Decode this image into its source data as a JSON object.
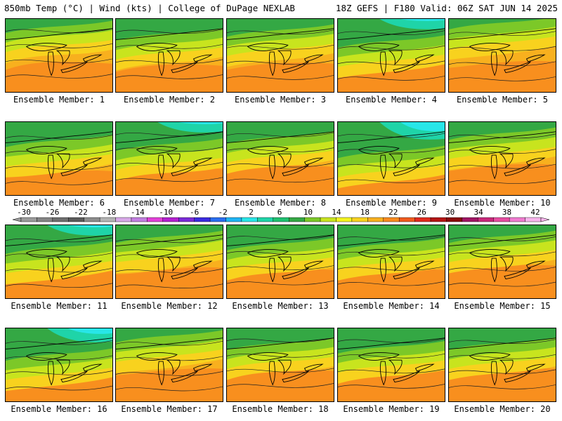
{
  "header": {
    "left_title": "850mb Temp (°C) | Wind (kts) | College of DuPage NEXLAB",
    "right_title": "18Z GEFS | F180 Valid: 06Z SAT JUN 14 2025"
  },
  "panels": [
    {
      "label": "Ensemble Member: 1",
      "warm": 0.55,
      "cold": 0.25
    },
    {
      "label": "Ensemble Member: 2",
      "warm": 0.5,
      "cold": 0.35
    },
    {
      "label": "Ensemble Member: 3",
      "warm": 0.55,
      "cold": 0.3
    },
    {
      "label": "Ensemble Member: 4",
      "warm": 0.55,
      "cold": 0.45
    },
    {
      "label": "Ensemble Member: 5",
      "warm": 0.6,
      "cold": 0.2
    },
    {
      "label": "Ensemble Member: 6",
      "warm": 0.45,
      "cold": 0.4
    },
    {
      "label": "Ensemble Member: 7",
      "warm": 0.5,
      "cold": 0.45
    },
    {
      "label": "Ensemble Member: 8",
      "warm": 0.55,
      "cold": 0.35
    },
    {
      "label": "Ensemble Member: 9",
      "warm": 0.4,
      "cold": 0.55
    },
    {
      "label": "Ensemble Member: 10",
      "warm": 0.6,
      "cold": 0.3
    },
    {
      "label": "Ensemble Member: 11",
      "warm": 0.65,
      "cold": 0.45
    },
    {
      "label": "Ensemble Member: 12",
      "warm": 0.6,
      "cold": 0.3
    },
    {
      "label": "Ensemble Member: 13",
      "warm": 0.55,
      "cold": 0.4
    },
    {
      "label": "Ensemble Member: 14",
      "warm": 0.55,
      "cold": 0.4
    },
    {
      "label": "Ensemble Member: 15",
      "warm": 0.65,
      "cold": 0.3
    },
    {
      "label": "Ensemble Member: 16",
      "warm": 0.55,
      "cold": 0.5
    },
    {
      "label": "Ensemble Member: 17",
      "warm": 0.65,
      "cold": 0.25
    },
    {
      "label": "Ensemble Member: 18",
      "warm": 0.6,
      "cold": 0.35
    },
    {
      "label": "Ensemble Member: 19",
      "warm": 0.6,
      "cold": 0.4
    },
    {
      "label": "Ensemble Member: 20",
      "warm": 0.65,
      "cold": 0.35
    }
  ],
  "colorbar": {
    "ticks": [
      "-30",
      "-26",
      "-22",
      "-18",
      "-14",
      "-10",
      "-6",
      "-2",
      "2",
      "6",
      "10",
      "14",
      "18",
      "22",
      "26",
      "30",
      "34",
      "38",
      "42"
    ],
    "colors": [
      "#9a9a9a",
      "#848484",
      "#6e6e6e",
      "#5a5a5a",
      "#8c8c8c",
      "#b4b4b4",
      "#d7a8e8",
      "#c27ee0",
      "#e23fd8",
      "#b41fd0",
      "#7a2ad8",
      "#3a2ae0",
      "#2a6ef0",
      "#1fb4f4",
      "#28e6e8",
      "#1fd4a8",
      "#1fc070",
      "#34a844",
      "#7cc828",
      "#c8e41e",
      "#f4f41e",
      "#f8d21e",
      "#f8b01e",
      "#f88a1e",
      "#f05a1e",
      "#e02a1e",
      "#b41414",
      "#8a0a0a",
      "#a01464",
      "#c8287a",
      "#e64ca0",
      "#f07ad0",
      "#f8b4ec"
    ]
  }
}
